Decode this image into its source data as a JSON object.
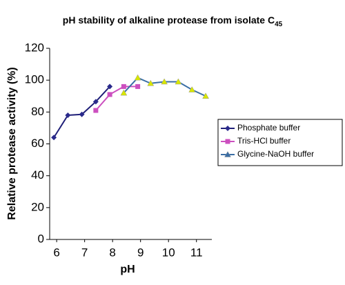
{
  "chart_data": {
    "type": "line",
    "title": "pH stability of alkaline protease from isolate C",
    "title_subscript": "45",
    "x_label": "pH",
    "y_label": "Relative protease activity (%)",
    "xlim": [
      5.75,
      11.55
    ],
    "xticks": [
      6,
      7,
      8,
      9,
      10,
      11
    ],
    "ylim": [
      0,
      120
    ],
    "yticks": [
      0,
      20,
      40,
      60,
      80,
      100,
      120
    ],
    "legend": "right",
    "series": [
      {
        "name": "Phosphate buffer",
        "color": "#1f1f78",
        "marker": "diamond",
        "marker_color": "#2a2a8c",
        "x": [
          5.9,
          6.4,
          6.9,
          7.4,
          7.9
        ],
        "values": [
          64,
          78,
          78.5,
          86.5,
          96
        ]
      },
      {
        "name": "Tris-HCl buffer",
        "color": "#cc4fbf",
        "marker": "square",
        "marker_color": "#cc4fbf",
        "x": [
          7.4,
          7.9,
          8.4,
          8.9
        ],
        "values": [
          81,
          91,
          96,
          96
        ]
      },
      {
        "name": "Glycine-NaOH buffer",
        "color": "#3a6ea5",
        "marker": "triangle",
        "marker_color": "#d8e600",
        "x": [
          8.4,
          8.9,
          9.36,
          9.85,
          10.35,
          10.84,
          11.33
        ],
        "values": [
          92,
          101.5,
          98,
          99,
          99,
          94,
          90
        ]
      }
    ]
  }
}
